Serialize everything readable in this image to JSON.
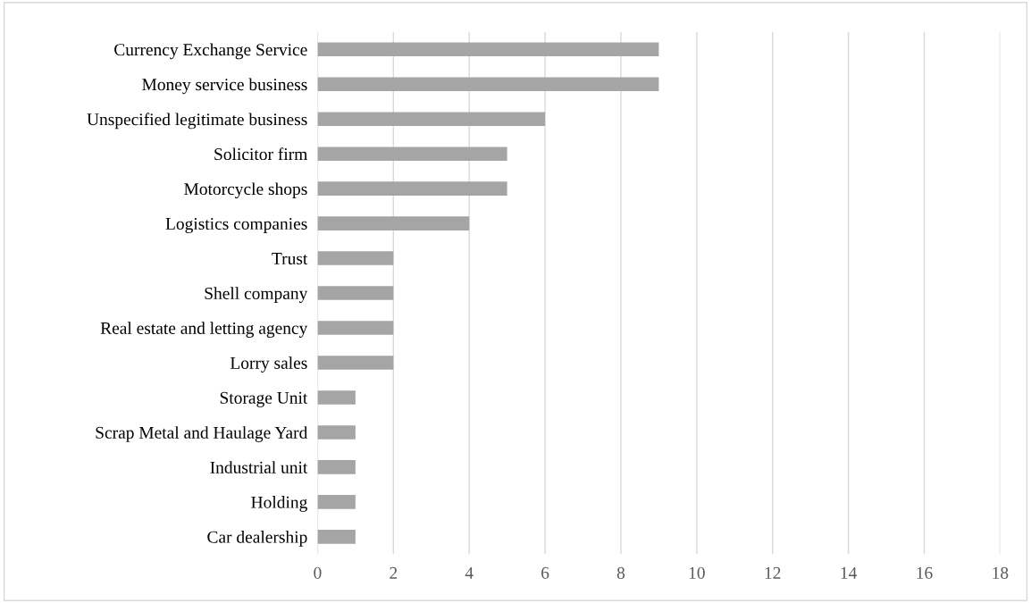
{
  "chart_data": {
    "type": "bar",
    "orientation": "horizontal",
    "categories": [
      "Currency Exchange Service",
      "Money service business",
      "Unspecified legitimate business",
      "Solicitor firm",
      "Motorcycle shops",
      "Logistics companies",
      "Trust",
      "Shell company",
      "Real estate and letting agency",
      "Lorry sales",
      "Storage Unit",
      "Scrap Metal and Haulage Yard",
      "Industrial unit",
      "Holding",
      "Car dealership"
    ],
    "values": [
      9,
      9,
      6,
      5,
      5,
      4,
      2,
      2,
      2,
      2,
      1,
      1,
      1,
      1,
      1
    ],
    "color": "#a5a5a5",
    "xlim": [
      0,
      18
    ],
    "xticks": [
      0,
      2,
      4,
      6,
      8,
      10,
      12,
      14,
      16,
      18
    ],
    "grid": "x",
    "legend": false
  }
}
